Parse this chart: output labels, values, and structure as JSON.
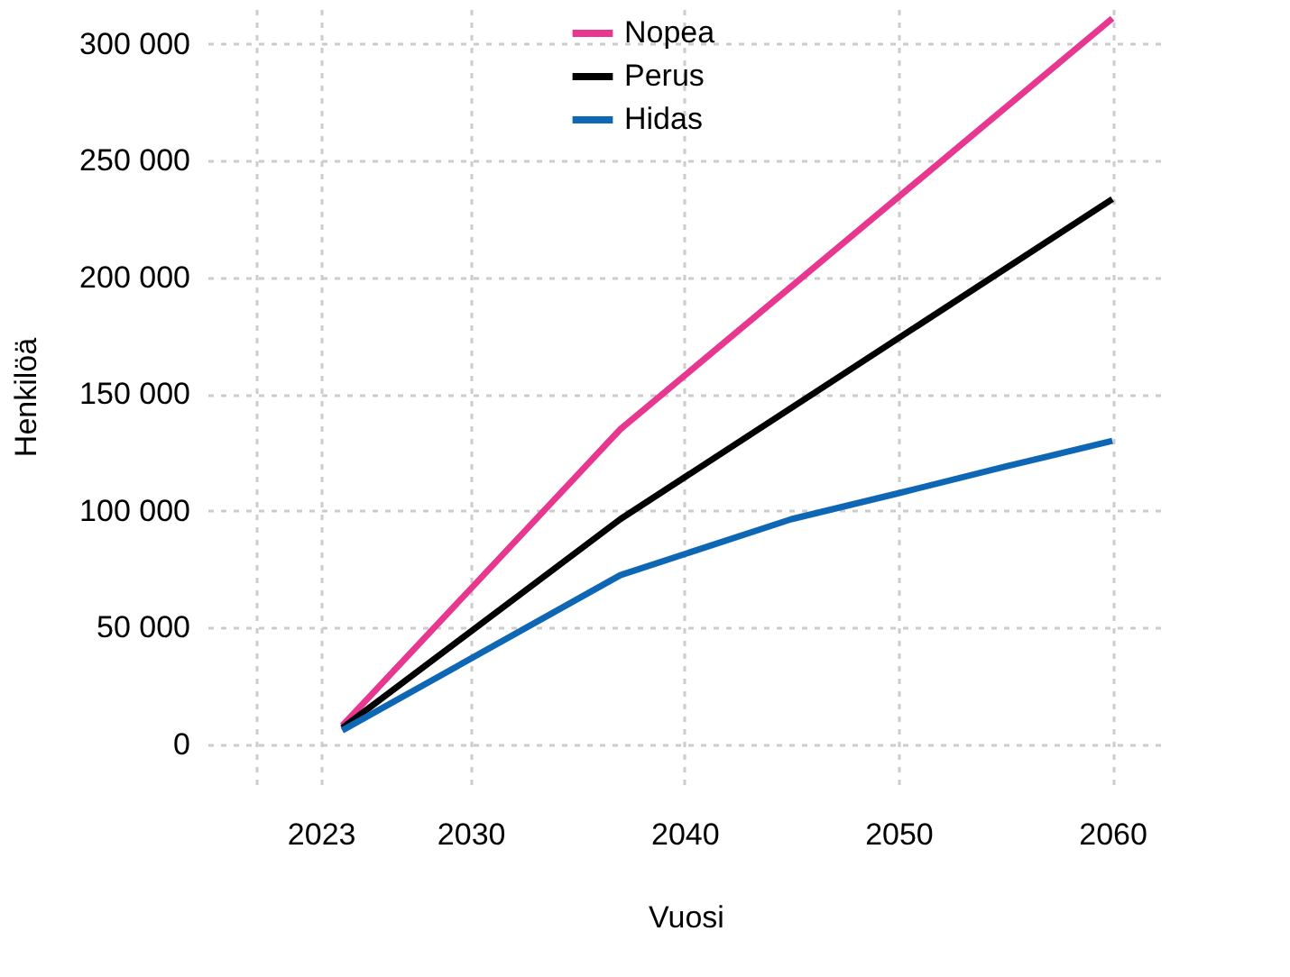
{
  "chart_data": {
    "type": "line",
    "xlabel": "Vuosi",
    "ylabel": "Henkilöä",
    "xlim": [
      2017.7,
      2062.4
    ],
    "ylim": [
      -17000,
      315000
    ],
    "xticks": [
      {
        "value": 2020,
        "label": null
      },
      2023,
      2030,
      2040,
      2050,
      2060
    ],
    "yticks": [
      {
        "value": 0,
        "label": "0"
      },
      {
        "value": 50000,
        "label": "50 000"
      },
      {
        "value": 100000,
        "label": "100 000"
      },
      {
        "value": 150000,
        "label": "150 000"
      },
      {
        "value": 200000,
        "label": "200 000"
      },
      {
        "value": 250000,
        "label": "250 000"
      },
      {
        "value": 300000,
        "label": "300 000"
      }
    ],
    "grid": true,
    "legend": "top",
    "line_style": "solid",
    "marker": "none",
    "series": [
      {
        "name": "Nopea",
        "color": "#e8378f",
        "x": [
          2024,
          2037,
          2060
        ],
        "values": [
          8000,
          135000,
          311000
        ]
      },
      {
        "name": "Perus",
        "color": "#000000",
        "x": [
          2024,
          2037,
          2060
        ],
        "values": [
          7000,
          96500,
          233600
        ]
      },
      {
        "name": "Hidas",
        "color": "#0e67b4",
        "x": [
          2024,
          2037,
          2045,
          2050,
          2055,
          2060
        ],
        "values": [
          6000,
          72500,
          96500,
          107600,
          119000,
          130000
        ]
      }
    ]
  }
}
